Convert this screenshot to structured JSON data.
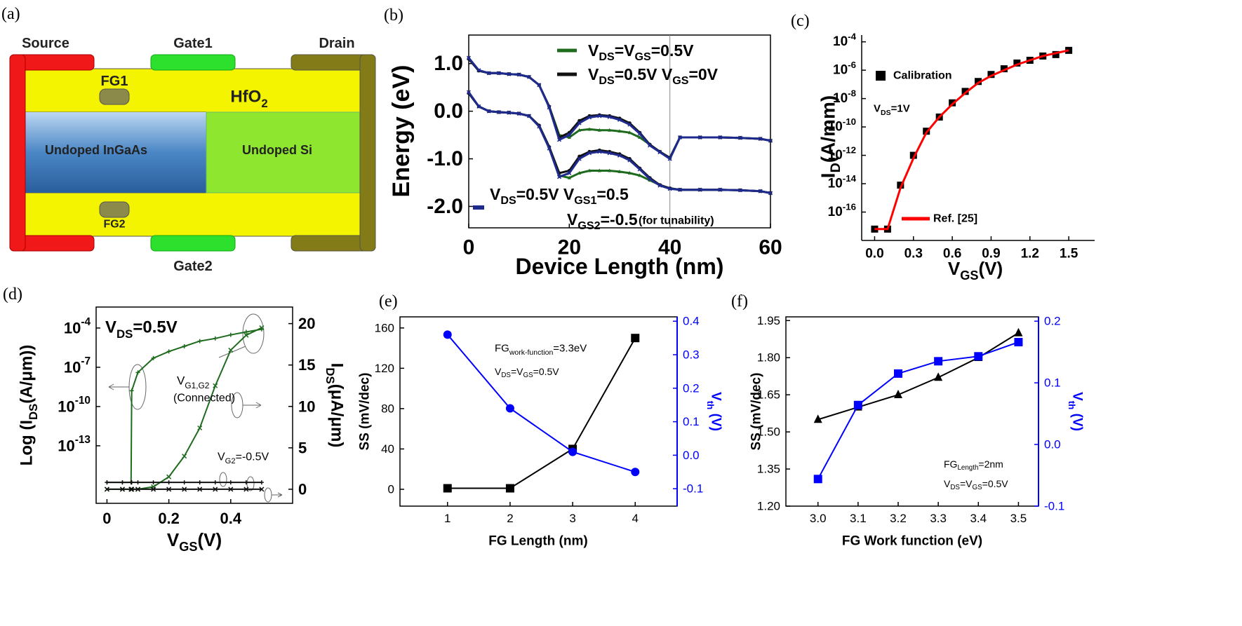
{
  "diagram": {
    "title": "(a)",
    "source": "Source",
    "gate1": "Gate1",
    "drain": "Drain",
    "fg1": "FG1",
    "oxide": "HfO2",
    "left_region": "Undoped InGaAs",
    "right_region": "Undoped Si",
    "fg2": "FG2",
    "gate2": "Gate2"
  },
  "chart_data": [
    {
      "type": "line",
      "title": "(b)",
      "xlabel": "Device Length (nm)",
      "ylabel": "Energy (eV)",
      "x": [
        0,
        2,
        4,
        6,
        8,
        10,
        12,
        14,
        16,
        18,
        20,
        22,
        24,
        26,
        28,
        30,
        32,
        34,
        36,
        38,
        40,
        42,
        46,
        50,
        54,
        58,
        60
      ],
      "xlim": [
        0,
        60
      ],
      "xticks": [
        0,
        20,
        40,
        60
      ],
      "ylim": [
        -2.45,
        1.6
      ],
      "yticks": [
        {
          "value": 1,
          "label": "1.0"
        },
        {
          "value": 0,
          "label": "0.0"
        },
        {
          "value": -1,
          "label": "-1.0"
        },
        {
          "value": -2,
          "label": "-2.0"
        }
      ],
      "vline": 40,
      "series": [
        {
          "name": "VDS=VGS=0.5V",
          "color": "#1e6b1e",
          "marker": "triangle",
          "values": [
            [
              1.1,
              0.85,
              0.8,
              0.8,
              0.78,
              0.77,
              0.72,
              0.55,
              0.1,
              -0.5,
              -0.55,
              -0.4,
              -0.38,
              -0.4,
              -0.4,
              -0.42,
              -0.45,
              -0.55,
              -0.7,
              -0.85,
              -0.98,
              -0.55,
              -0.55,
              -0.55,
              -0.56,
              -0.58,
              -0.62
            ],
            [
              0.38,
              0.1,
              0.0,
              -0.02,
              -0.03,
              -0.05,
              -0.1,
              -0.3,
              -0.75,
              -1.35,
              -1.4,
              -1.3,
              -1.25,
              -1.25,
              -1.25,
              -1.27,
              -1.3,
              -1.35,
              -1.45,
              -1.55,
              -1.62,
              -1.65,
              -1.65,
              -1.65,
              -1.66,
              -1.68,
              -1.72
            ]
          ]
        },
        {
          "name": "VDS=0.5V VGS=0V",
          "color": "#111111",
          "marker": "circle",
          "values": [
            [
              1.1,
              0.85,
              0.8,
              0.8,
              0.78,
              0.77,
              0.72,
              0.55,
              0.1,
              -0.55,
              -0.45,
              -0.2,
              -0.1,
              -0.08,
              -0.1,
              -0.15,
              -0.25,
              -0.45,
              -0.7,
              -0.85,
              -0.98,
              -0.55,
              -0.55,
              -0.55,
              -0.56,
              -0.58,
              -0.62
            ],
            [
              0.38,
              0.1,
              0.0,
              -0.02,
              -0.03,
              -0.05,
              -0.1,
              -0.3,
              -0.75,
              -1.3,
              -1.25,
              -0.95,
              -0.85,
              -0.82,
              -0.85,
              -0.9,
              -1.0,
              -1.2,
              -1.4,
              -1.55,
              -1.62,
              -1.65,
              -1.65,
              -1.65,
              -1.66,
              -1.68,
              -1.72
            ]
          ]
        },
        {
          "name": "VDS=0.5V VGS1=0.5",
          "color": "#1f2a8f",
          "marker": "cross",
          "values": [
            [
              1.12,
              0.86,
              0.8,
              0.8,
              0.78,
              0.77,
              0.72,
              0.55,
              0.08,
              -0.6,
              -0.5,
              -0.25,
              -0.13,
              -0.1,
              -0.12,
              -0.18,
              -0.28,
              -0.47,
              -0.72,
              -0.86,
              -1.0,
              -0.55,
              -0.55,
              -0.55,
              -0.56,
              -0.58,
              -0.62
            ],
            [
              0.4,
              0.1,
              0.0,
              -0.02,
              -0.03,
              -0.05,
              -0.1,
              -0.32,
              -0.78,
              -1.38,
              -1.3,
              -1.0,
              -0.88,
              -0.85,
              -0.88,
              -0.93,
              -1.03,
              -1.22,
              -1.42,
              -1.56,
              -1.63,
              -1.65,
              -1.65,
              -1.65,
              -1.66,
              -1.68,
              -1.72
            ]
          ]
        }
      ],
      "annotations": [
        "VGS2=-0.5",
        "(for tunability)"
      ]
    },
    {
      "type": "line",
      "title": "(c)",
      "xlabel": "VGS(V)",
      "ylabel": "ID(A/mm)",
      "ylog": true,
      "x": [
        0,
        0.1,
        0.2,
        0.3,
        0.4,
        0.5,
        0.6,
        0.7,
        0.8,
        0.9,
        1.0,
        1.1,
        1.2,
        1.3,
        1.4,
        1.5
      ],
      "xlim": [
        -0.1,
        1.7
      ],
      "xticks": [
        {
          "value": 0,
          "label": "0.0"
        },
        0.3,
        0.6,
        0.9,
        1.2,
        1.5
      ],
      "ylim": [
        1e-18,
        0.0003
      ],
      "yticks": [
        {
          "value": 0.0001,
          "label": "10-4"
        },
        {
          "value": 1e-06,
          "label": "10-6"
        },
        {
          "value": 1e-08,
          "label": "10-8"
        },
        {
          "value": 1e-10,
          "label": "10-10"
        },
        {
          "value": 1e-12,
          "label": "10-12"
        },
        {
          "value": 1e-14,
          "label": "10-14"
        },
        {
          "value": 1e-16,
          "label": "10-16"
        }
      ],
      "series": [
        {
          "name": "Calibration",
          "color": "#000000",
          "marker": "square",
          "line": false,
          "values": [
            6.3e-18,
            6.3e-18,
            7.9e-15,
            1e-12,
            5e-11,
            5e-10,
            5e-09,
            3.2e-08,
            1.6e-07,
            5e-07,
            1.26e-06,
            3.2e-06,
            5e-06,
            1e-05,
            1.26e-05,
            2.5e-05
          ]
        },
        {
          "name": "Ref. [25]",
          "color": "#ff0000",
          "marker": "none",
          "values": [
            6.3e-18,
            6.3e-18,
            5e-15,
            6.3e-13,
            4e-11,
            5e-10,
            4e-09,
            2.5e-08,
            1.26e-07,
            4e-07,
            1e-06,
            2.5e-06,
            5e-06,
            1e-05,
            1.6e-05,
            2.5e-05
          ]
        }
      ],
      "annotations": [
        "VDS=1V"
      ]
    },
    {
      "type": "line",
      "title": "(d)",
      "xlabel": "VGS(V)",
      "ylabel": "Log (IDS(A/μm))",
      "y2label": "IDS(μA/μm)",
      "ylog": true,
      "x": [
        0,
        0.05,
        0.078,
        0.08,
        0.1,
        0.15,
        0.2,
        0.25,
        0.3,
        0.35,
        0.4,
        0.45,
        0.5
      ],
      "xlim": [
        -0.035,
        0.6
      ],
      "xticks": [
        0,
        0.2,
        0.4
      ],
      "ylim": [
        4e-18,
        0.004
      ],
      "yticks": [
        {
          "value": 0.0001,
          "label": "10-4"
        },
        {
          "value": 1e-07,
          "label": "10-7"
        },
        {
          "value": 1e-10,
          "label": "10-10"
        },
        {
          "value": 1e-13,
          "label": "10-13"
        }
      ],
      "y2lim": [
        -1.7,
        22
      ],
      "y2ticks": [
        0,
        5,
        10,
        15,
        20
      ],
      "series": [
        {
          "color": "#1e6b1e",
          "marker": "plus",
          "values": [
            1.6e-16,
            1.6e-16,
            1.6e-16,
            1.6e-09,
            4e-08,
            5e-07,
            1.6e-06,
            4e-06,
            1e-05,
            1.6e-05,
            3e-05,
            5e-05,
            8e-05
          ]
        },
        {
          "color": "#1e6b1e",
          "marker": "cross",
          "axis": "y2",
          "values": [
            0,
            0,
            0,
            0,
            0,
            0.3,
            1.5,
            4,
            7.4,
            12.5,
            16.8,
            18.6,
            19.5
          ]
        },
        {
          "color": "#111111",
          "marker": "plus",
          "values": [
            1.6e-16,
            1.6e-16,
            1.6e-16,
            1.6e-16,
            1.6e-16,
            1.6e-16,
            1.6e-16,
            1.6e-16,
            1.6e-16,
            1.6e-16,
            1.6e-16,
            1.6e-16,
            1.6e-16
          ]
        },
        {
          "color": "#111111",
          "marker": "cross",
          "axis": "y2",
          "values": [
            0,
            0,
            0,
            0,
            0,
            0,
            0,
            0,
            0,
            0,
            0,
            0,
            0
          ]
        }
      ],
      "annotations": [
        "VDS=0.5V",
        "VG1,G2",
        "(Connected)",
        "VG2=-0.5V"
      ]
    },
    {
      "type": "line",
      "title": "(e)",
      "xlabel": "FG Length (nm)",
      "ylabel": "SS (mV/dec)",
      "y2label": "Vth (V)",
      "y2color": "#0000ff",
      "x": [
        1,
        2,
        3,
        4
      ],
      "xlim": [
        0.24,
        4.67
      ],
      "xticks": [
        1,
        2,
        3,
        4
      ],
      "ylim": [
        -16.7,
        171
      ],
      "yticks": [
        0,
        40,
        80,
        120,
        160
      ],
      "y2lim": [
        -0.152,
        0.413
      ],
      "y2ticks": [
        -0.1,
        {
          "value": 0,
          "label": "0.0"
        },
        0.1,
        0.2,
        0.3,
        0.4
      ],
      "series": [
        {
          "color": "#000000",
          "marker": "square",
          "values": [
            1,
            1,
            40,
            150
          ]
        },
        {
          "color": "#0000ff",
          "marker": "circle",
          "axis": "y2",
          "values": [
            0.36,
            0.14,
            0.01,
            -0.05
          ]
        }
      ],
      "annotations": [
        "FGwork-function=3.3eV",
        "VDS=VGS=0.5V"
      ]
    },
    {
      "type": "line",
      "title": "(f)",
      "xlabel": "FG Work function (eV)",
      "ylabel": "SS (mV/dec)",
      "y2label": "Vth (V)",
      "y2color": "#0000ff",
      "x": [
        3.0,
        3.1,
        3.2,
        3.3,
        3.4,
        3.5
      ],
      "xlim": [
        2.92,
        3.55
      ],
      "xticks": [
        {
          "value": 3,
          "label": "3.0"
        },
        3.1,
        3.2,
        3.3,
        3.4,
        3.5
      ],
      "ylim": [
        1.2,
        1.965
      ],
      "yticks": [
        {
          "value": 1.2,
          "label": "1.20"
        },
        1.35,
        {
          "value": 1.5,
          "label": "1.50"
        },
        1.65,
        {
          "value": 1.8,
          "label": "1.80"
        },
        1.95
      ],
      "y2lim": [
        -0.1,
        0.207
      ],
      "y2ticks": [
        -0.1,
        {
          "value": 0,
          "label": "0.0"
        },
        0.1,
        0.2
      ],
      "series": [
        {
          "color": "#000000",
          "marker": "triangle",
          "values": [
            1.55,
            1.6,
            1.65,
            1.72,
            1.8,
            1.9
          ]
        },
        {
          "color": "#0000ff",
          "marker": "square",
          "axis": "y2",
          "values": [
            -0.056,
            0.064,
            0.115,
            0.135,
            0.143,
            0.166
          ]
        }
      ],
      "annotations": [
        "FGLength=2nm",
        "VDS=VGS=0.5V"
      ]
    }
  ]
}
